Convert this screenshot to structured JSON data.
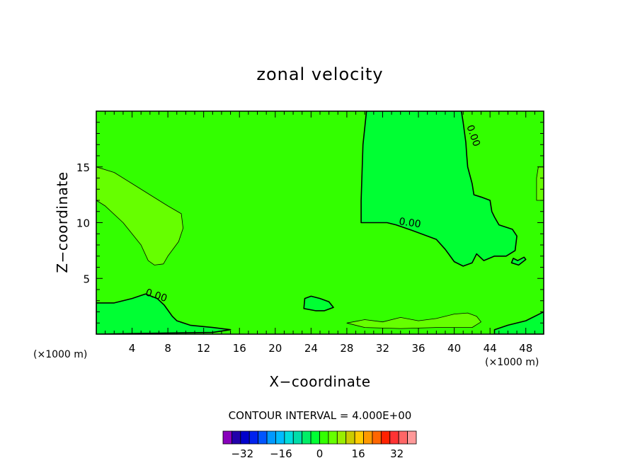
{
  "chart_data": {
    "type": "heatmap",
    "title": "zonal velocity",
    "xlabel": "X−coordinate",
    "ylabel": "Z−coordinate",
    "x_unit_left": "(×1000 m)",
    "x_unit_right": "(×1000 m)",
    "xlim": [
      0,
      50
    ],
    "ylim": [
      0,
      20
    ],
    "xticks": [
      4,
      8,
      12,
      16,
      20,
      24,
      28,
      32,
      36,
      40,
      44,
      48
    ],
    "yticks": [
      5,
      10,
      15
    ],
    "xtick_labels": [
      "4",
      "8",
      "12",
      "16",
      "20",
      "24",
      "28",
      "32",
      "36",
      "40",
      "44",
      "48"
    ],
    "ytick_labels": [
      "5",
      "10",
      "15"
    ],
    "contour_interval_label": "CONTOUR INTERVAL = 4.000E+00",
    "contour_interval": 4,
    "contour_labels": [
      "0.00",
      "0.00",
      "0.00"
    ],
    "colorbar": {
      "min": -36,
      "max": 36,
      "step": 4,
      "tick_values": [
        -32,
        -16,
        0,
        16,
        32
      ],
      "tick_labels": [
        "−32",
        "−16",
        "0",
        "16",
        "32"
      ],
      "colors": [
        "#8800bb",
        "#2200aa",
        "#0000cc",
        "#0022ee",
        "#0055ff",
        "#0099ff",
        "#00bbff",
        "#00dddd",
        "#00ddaa",
        "#00ee66",
        "#00ff33",
        "#33ff00",
        "#66ff00",
        "#99ee00",
        "#cccc00",
        "#ffcc00",
        "#ff9900",
        "#ff6600",
        "#ff2200",
        "#ff3333",
        "#ff6666",
        "#ff9999"
      ]
    },
    "background_color": "#33ff00",
    "regions": [
      {
        "name": "upper-left-positive",
        "level": "4 to 8",
        "color": "#66ff00",
        "outline": [
          [
            0,
            12
          ],
          [
            0,
            15
          ],
          [
            2,
            14.5
          ],
          [
            4,
            13.5
          ],
          [
            6,
            12.5
          ],
          [
            8,
            11.5
          ],
          [
            9.5,
            10.8
          ],
          [
            9.7,
            9.5
          ],
          [
            9.2,
            8.3
          ],
          [
            8,
            7
          ],
          [
            7.5,
            6.3
          ],
          [
            6.5,
            6.2
          ],
          [
            5.8,
            6.6
          ],
          [
            5,
            8
          ],
          [
            3,
            10
          ],
          [
            1,
            11.5
          ]
        ]
      },
      {
        "name": "right-negative",
        "level": "-4 to 0",
        "color": "#00ff33",
        "outline": [
          [
            30.2,
            20
          ],
          [
            29.8,
            17
          ],
          [
            29.6,
            12
          ],
          [
            29.6,
            10
          ],
          [
            30.5,
            10
          ],
          [
            32.5,
            10
          ],
          [
            33.5,
            9.8
          ],
          [
            35.3,
            9.3
          ],
          [
            38,
            8.5
          ],
          [
            39,
            7.6
          ],
          [
            40,
            6.5
          ],
          [
            41,
            6.1
          ],
          [
            42,
            6.4
          ],
          [
            42.5,
            7.2
          ],
          [
            43.3,
            6.6
          ],
          [
            44.5,
            7
          ],
          [
            45.8,
            7
          ],
          [
            46.8,
            7.5
          ],
          [
            47,
            8.8
          ],
          [
            46.5,
            9.4
          ],
          [
            45,
            9.8
          ],
          [
            44.5,
            10.5
          ],
          [
            44.2,
            11
          ],
          [
            44,
            12
          ],
          [
            43,
            12.3
          ],
          [
            42.2,
            12.5
          ],
          [
            42,
            13.5
          ],
          [
            41.5,
            15
          ],
          [
            41.4,
            16
          ],
          [
            41.3,
            17.2
          ],
          [
            41,
            19
          ],
          [
            40.8,
            20
          ]
        ]
      },
      {
        "name": "bottom-left-negative",
        "level": "-4 to 0",
        "color": "#00ff33",
        "outline": [
          [
            0,
            0
          ],
          [
            0,
            2.8
          ],
          [
            2,
            2.8
          ],
          [
            4,
            3.2
          ],
          [
            5.5,
            3.6
          ],
          [
            6.8,
            3.2
          ],
          [
            7.6,
            2.6
          ],
          [
            8.5,
            1.6
          ],
          [
            9,
            1.2
          ],
          [
            10.5,
            0.8
          ],
          [
            13,
            0.6
          ],
          [
            15,
            0.4
          ],
          [
            13,
            0.15
          ],
          [
            8,
            0.1
          ],
          [
            4,
            0.05
          ]
        ]
      },
      {
        "name": "small-negative-x24",
        "level": "-4 to 0",
        "color": "#00ff33",
        "outline": [
          [
            23.2,
            2.3
          ],
          [
            23.3,
            3.2
          ],
          [
            24,
            3.4
          ],
          [
            25,
            3.2
          ],
          [
            26,
            2.9
          ],
          [
            26.5,
            2.4
          ],
          [
            25.5,
            2.1
          ],
          [
            24.5,
            2.1
          ]
        ]
      },
      {
        "name": "small-negative-x47",
        "level": "-4 to 0",
        "color": "#00ff33",
        "outline": [
          [
            46.4,
            6.4
          ],
          [
            47.2,
            6.2
          ],
          [
            48,
            6.7
          ],
          [
            47.8,
            6.9
          ],
          [
            47.1,
            6.6
          ],
          [
            46.6,
            6.8
          ]
        ]
      },
      {
        "name": "right-edge-positive",
        "level": "4 to 8",
        "color": "#66ff00",
        "outline": [
          [
            49.2,
            12
          ],
          [
            49.2,
            14
          ],
          [
            49.4,
            15
          ],
          [
            50,
            15
          ],
          [
            50,
            12
          ]
        ]
      },
      {
        "name": "bottom-positive-band",
        "level": "4 to 8",
        "color": "#66ff00",
        "outline": [
          [
            28,
            1
          ],
          [
            30,
            1.3
          ],
          [
            32,
            1.1
          ],
          [
            34,
            1.5
          ],
          [
            36,
            1.2
          ],
          [
            38,
            1.4
          ],
          [
            40,
            1.8
          ],
          [
            41.5,
            1.9
          ],
          [
            42.5,
            1.6
          ],
          [
            43,
            1.1
          ],
          [
            42,
            0.6
          ],
          [
            38,
            0.6
          ],
          [
            34,
            0.5
          ],
          [
            30,
            0.6
          ]
        ]
      },
      {
        "name": "bottom-right-negative",
        "level": "-4 to 0",
        "color": "#00ff33",
        "outline": [
          [
            44.5,
            0.4
          ],
          [
            46,
            0.8
          ],
          [
            48,
            1.2
          ],
          [
            50,
            2
          ],
          [
            50,
            0
          ],
          [
            44.5,
            0
          ]
        ]
      }
    ],
    "grid": false
  }
}
